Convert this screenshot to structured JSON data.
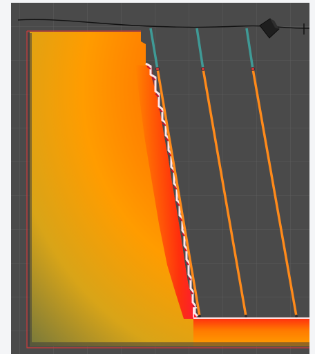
{
  "app": {
    "title": ""
  },
  "viewport": {
    "background_color": "#4a4a4a",
    "grid_color": "#5c5c5c",
    "outline_color": "#d23a3a",
    "accent_colors": {
      "gradient_yellow": "#b8b232",
      "gradient_orange": "#ff9c00",
      "gradient_red": "#ff1010",
      "teal_link": "#3f9a96",
      "orange_strut": "#ff8a1a"
    }
  },
  "scene": {
    "objects": [
      "top-cable",
      "anchor-block",
      "soil-mass",
      "stepped-slope-face",
      "base-plate",
      "support-strut-1",
      "support-strut-2",
      "support-strut-3"
    ]
  },
  "icons": {
    "anchor": "cube-icon"
  }
}
